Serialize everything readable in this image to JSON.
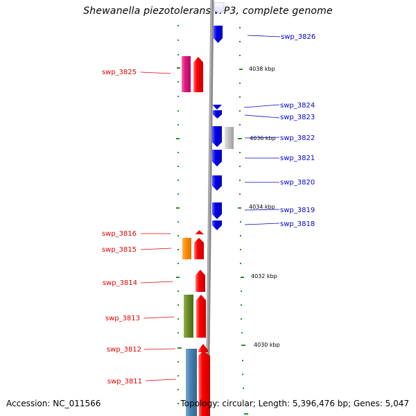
{
  "title": "Shewanella piezotolerans WP3, complete genome",
  "accession": "Accession: NC_011566",
  "summary": "Topology: circular; Length: 5,396,476 bp; Genes: 5,047",
  "colors": {
    "forward_label": "#e00000",
    "reverse_label": "#0000cc",
    "forward_gene": "#ff0000",
    "reverse_gene": "#0000ee",
    "backbone": "#888888",
    "tick": "#2a8a2a",
    "cog_magenta": "#e0157f",
    "cog_gray": "#bdbdbd",
    "cog_orange": "#ff8c00",
    "cog_olive": "#6b8e23",
    "cog_steelblue": "#4682b4"
  },
  "scale_labels": [
    "4038 kbp",
    "4036 kbp",
    "4034 kbp",
    "4032 kbp",
    "4030 kbp"
  ],
  "genes": [
    {
      "name": "swp_3826",
      "strand": "-"
    },
    {
      "name": "swp_3825",
      "strand": "+"
    },
    {
      "name": "swp_3824",
      "strand": "-"
    },
    {
      "name": "swp_3823",
      "strand": "-"
    },
    {
      "name": "swp_3822",
      "strand": "-"
    },
    {
      "name": "swp_3821",
      "strand": "-"
    },
    {
      "name": "swp_3820",
      "strand": "-"
    },
    {
      "name": "swp_3819",
      "strand": "-"
    },
    {
      "name": "swp_3818",
      "strand": "-"
    },
    {
      "name": "swp_3816",
      "strand": "+"
    },
    {
      "name": "swp_3815",
      "strand": "+"
    },
    {
      "name": "swp_3814",
      "strand": "+"
    },
    {
      "name": "swp_3813",
      "strand": "+"
    },
    {
      "name": "swp_3812",
      "strand": "+"
    },
    {
      "name": "swp_3811",
      "strand": "+"
    }
  ]
}
